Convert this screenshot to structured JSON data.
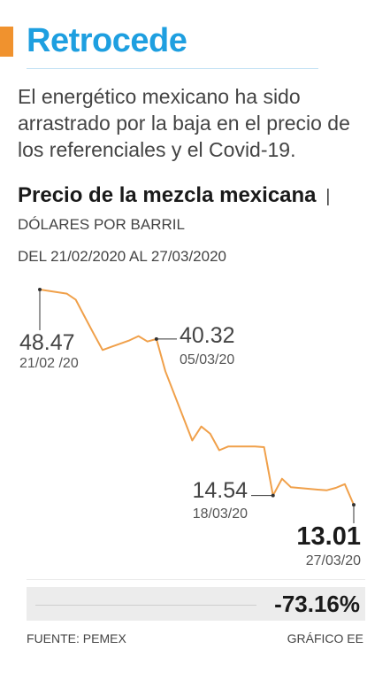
{
  "headline": "Retrocede",
  "subtitle": "El energético mexicano ha sido arrastrado por la baja en el precio de los referenciales y el Covid-19.",
  "chart_title": "Precio de la mezcla mexicana",
  "chart_unit": "DÓLARES POR BARRIL",
  "date_range": "DEL 21/02/2020 AL 27/03/2020",
  "summary": "-73.16%",
  "source": "FUENTE: PEMEX",
  "credit": "GRÁFICO EE",
  "colors": {
    "accent": "#f0922e",
    "headline": "#1e9fe0",
    "line": "#f0a04a"
  },
  "chart_data": {
    "type": "line",
    "title": "Precio de la mezcla mexicana",
    "ylabel": "DÓLARES POR BARRIL",
    "x_range": [
      "21/02/2020",
      "27/03/2020"
    ],
    "ylim": [
      0,
      50
    ],
    "grid": false,
    "series": [
      {
        "values": [
          [
            "2020-02-21",
            48.47
          ],
          [
            "2020-02-24",
            47.8
          ],
          [
            "2020-02-25",
            46.8
          ],
          [
            "2020-02-26",
            44.0
          ],
          [
            "2020-02-27",
            41.2
          ],
          [
            "2020-02-28",
            38.5
          ],
          [
            "2020-03-02",
            40.1
          ],
          [
            "2020-03-03",
            40.8
          ],
          [
            "2020-03-04",
            39.9
          ],
          [
            "2020-03-05",
            40.32
          ],
          [
            "2020-03-06",
            35.0
          ],
          [
            "2020-03-09",
            23.6
          ],
          [
            "2020-03-10",
            25.9
          ],
          [
            "2020-03-11",
            24.7
          ],
          [
            "2020-03-12",
            22.0
          ],
          [
            "2020-03-13",
            22.6
          ],
          [
            "2020-03-16",
            22.6
          ],
          [
            "2020-03-17",
            22.5
          ],
          [
            "2020-03-18",
            14.54
          ],
          [
            "2020-03-19",
            17.3
          ],
          [
            "2020-03-20",
            15.9
          ],
          [
            "2020-03-23",
            15.5
          ],
          [
            "2020-03-24",
            15.4
          ],
          [
            "2020-03-25",
            15.8
          ],
          [
            "2020-03-26",
            16.4
          ],
          [
            "2020-03-27",
            13.01
          ]
        ]
      }
    ],
    "annotations": [
      {
        "date": "2020-02-21",
        "value": 48.47,
        "value_label": "48.47",
        "date_label": "21/02 /20"
      },
      {
        "date": "2020-03-05",
        "value": 40.32,
        "value_label": "40.32",
        "date_label": "05/03/20"
      },
      {
        "date": "2020-03-18",
        "value": 14.54,
        "value_label": "14.54",
        "date_label": "18/03/20"
      },
      {
        "date": "2020-03-27",
        "value": 13.01,
        "value_label": "13.01",
        "date_label": "27/03/20"
      }
    ]
  }
}
